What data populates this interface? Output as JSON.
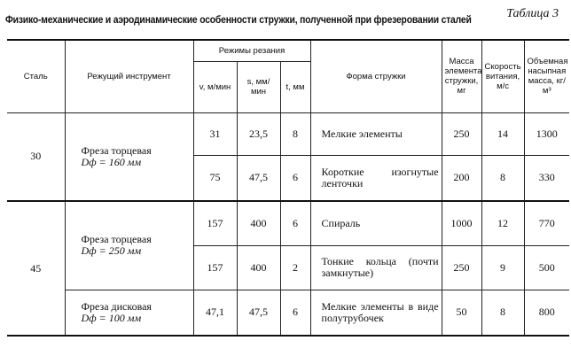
{
  "table_label": "Таблица 3",
  "title": "Физико-механические и аэродинамические особенности стружки, полученной при фрезеровании сталей",
  "headers": {
    "steel": "Сталь",
    "tool": "Режущий инструмент",
    "modes": "Режимы резания",
    "v": "v, м/мин",
    "s": "s, мм/мин",
    "t": "t, мм",
    "form": "Форма стружки",
    "mass": "Масса элемента стружки, мг",
    "speed": "Скорость витания, м/с",
    "density": "Объемная насыпная масса, кг/м³"
  },
  "groups": [
    {
      "steel": "30",
      "tools": [
        {
          "name": "Фреза торцевая",
          "dia": "Dф = 160 мм",
          "rows": [
            {
              "v": "31",
              "s": "23,5",
              "t": "8",
              "form": "Мелкие элементы",
              "mass": "250",
              "speed": "14",
              "density": "1300"
            },
            {
              "v": "75",
              "s": "47,5",
              "t": "6",
              "form": "Короткие изогнутые ленточки",
              "mass": "200",
              "speed": "8",
              "density": "330"
            }
          ]
        }
      ]
    },
    {
      "steel": "45",
      "tools": [
        {
          "name": "Фреза торцевая",
          "dia": "Dф = 250 мм",
          "rows": [
            {
              "v": "157",
              "s": "400",
              "t": "6",
              "form": "Спираль",
              "mass": "1000",
              "speed": "12",
              "density": "770"
            },
            {
              "v": "157",
              "s": "400",
              "t": "2",
              "form": "Тонкие кольца (почти замкнутые)",
              "mass": "250",
              "speed": "9",
              "density": "500"
            }
          ]
        },
        {
          "name": "Фреза дисковая",
          "dia": "Dф = 100 мм",
          "rows": [
            {
              "v": "47,1",
              "s": "47,5",
              "t": "6",
              "form": "Мелкие элементы в виде полутрубочек",
              "mass": "50",
              "speed": "8",
              "density": "800"
            }
          ]
        }
      ]
    }
  ]
}
